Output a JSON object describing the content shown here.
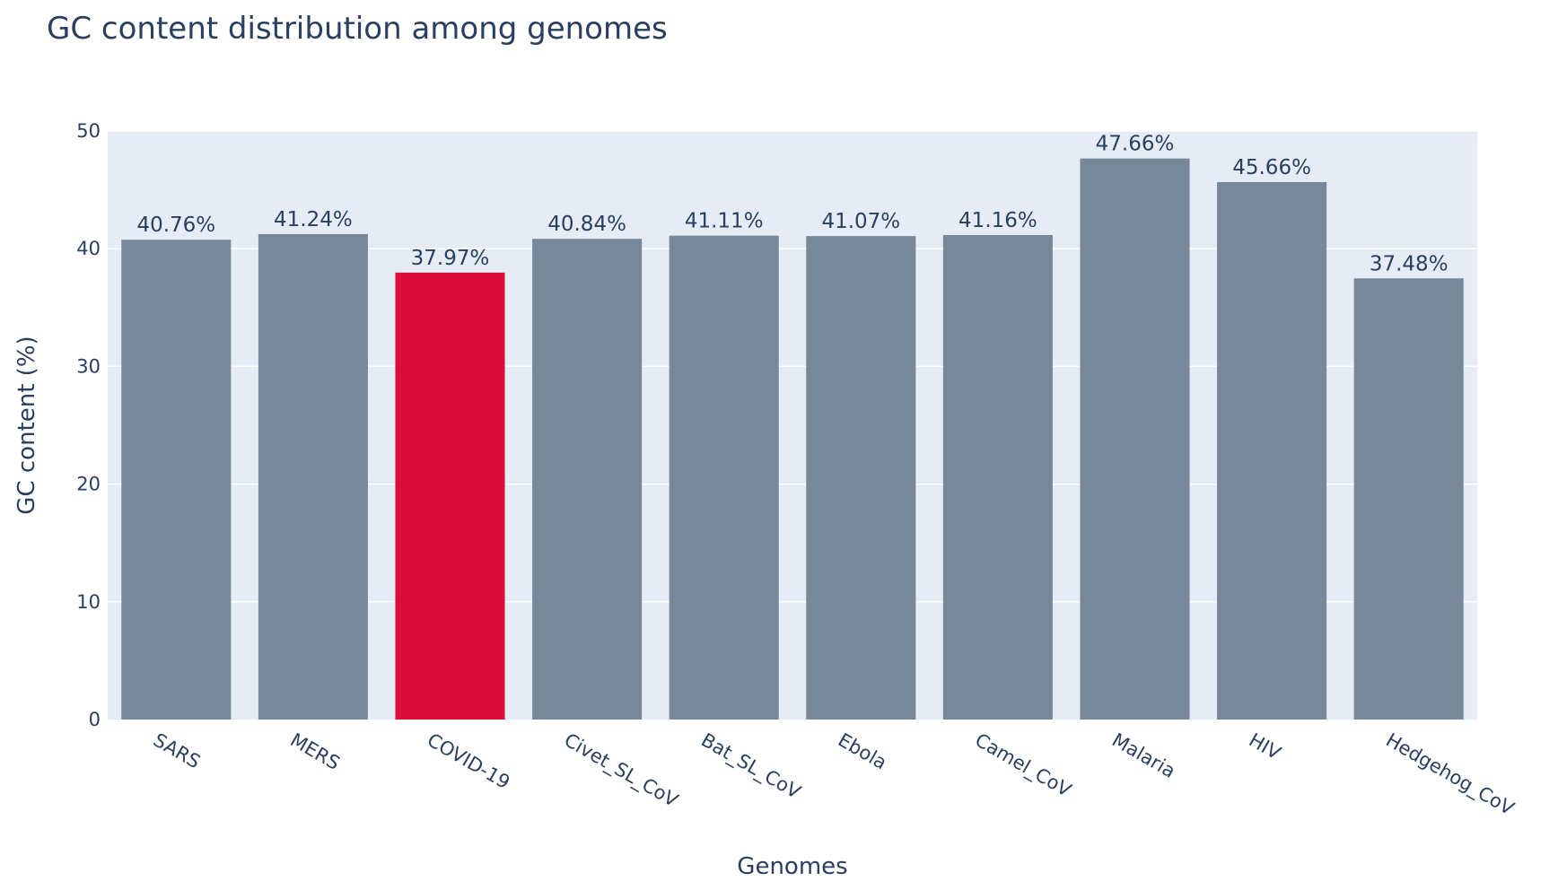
{
  "chart_data": {
    "type": "bar",
    "title": "GC content distribution among genomes",
    "xlabel": "Genomes",
    "ylabel": "GC content (%)",
    "categories": [
      "SARS",
      "MERS",
      "COVID-19",
      "Civet_SL_CoV",
      "Bat_SL_CoV",
      "Ebola",
      "Camel_CoV",
      "Malaria",
      "HIV",
      "Hedgehog_CoV"
    ],
    "values": [
      40.76,
      41.24,
      37.97,
      40.84,
      41.11,
      41.07,
      41.16,
      47.66,
      45.66,
      37.48
    ],
    "data_labels": [
      "40.76%",
      "41.24%",
      "37.97%",
      "40.84%",
      "41.11%",
      "41.07%",
      "41.16%",
      "47.66%",
      "45.66%",
      "37.48%"
    ],
    "ylim": [
      0,
      50
    ],
    "yticks": [
      0,
      10,
      20,
      30,
      40,
      50
    ],
    "grid": true,
    "legend": "none",
    "colors": {
      "default_bar": "#778899",
      "highlight_bar": "#dc0d3a",
      "plot_background": "#e5ecf6",
      "gridline": "#ffffff",
      "text": "#2a3f5f"
    },
    "highlight_category": "COVID-19"
  }
}
